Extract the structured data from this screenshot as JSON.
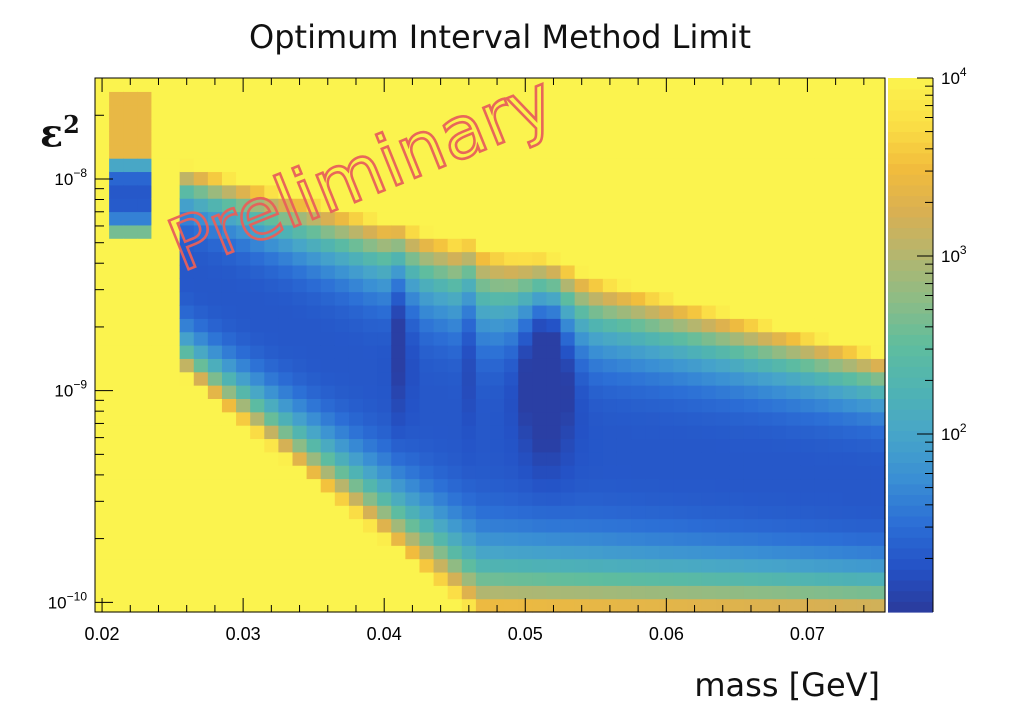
{
  "title": "Optimum Interval Method Limit",
  "watermark": "Preliminary",
  "chart_data": {
    "type": "heatmap",
    "title": "Optimum Interval Method Limit",
    "xlabel": "mass [GeV]",
    "ylabel": "ε²",
    "ylabel_base": "ε",
    "ylabel_sup": "2",
    "x_range": [
      0.0195,
      0.0755
    ],
    "y_range": [
      9e-11,
      3e-08
    ],
    "y_scale": "log",
    "z_range": [
      10,
      10000
    ],
    "z_scale": "log",
    "x_ticks": [
      "0.02",
      "0.03",
      "0.04",
      "0.05",
      "0.06",
      "0.07"
    ],
    "x_tick_values": [
      0.02,
      0.03,
      0.04,
      0.05,
      0.06,
      0.07
    ],
    "y_ticks": [
      {
        "value": 1e-08,
        "base": "10",
        "exp": "−8"
      },
      {
        "value": 1e-09,
        "base": "10",
        "exp": "−9"
      },
      {
        "value": 1e-10,
        "base": "10",
        "exp": "−10"
      }
    ],
    "z_ticks": [
      {
        "value": 10000,
        "base": "10",
        "exp": "4"
      },
      {
        "value": 1000,
        "base": "10",
        "exp": "3"
      },
      {
        "value": 100,
        "base": "10",
        "exp": "2"
      }
    ],
    "palette": [
      "#2b3a9b",
      "#2452c6",
      "#2c6fd6",
      "#3a8fd4",
      "#47a5c9",
      "#4fb3b3",
      "#5fbd9e",
      "#8cbc86",
      "#b3b66f",
      "#d9b052",
      "#f2bd3c",
      "#fbe046",
      "#fbf34e"
    ],
    "grid": false,
    "bins": {
      "nx": 56,
      "ny": 40
    }
  }
}
